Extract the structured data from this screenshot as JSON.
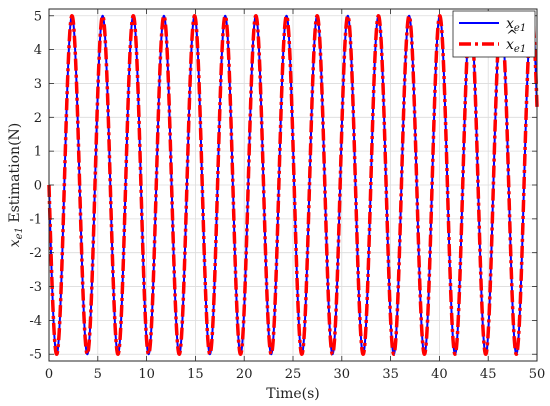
{
  "chart_data": {
    "type": "line",
    "xlabel": "Time(s)",
    "ylabel": "x_e1 Estimation(N)",
    "ylabel_parts": {
      "var": "x",
      "sub": "e1",
      "rest": " Estimation(N)"
    },
    "xlim": [
      0,
      50
    ],
    "ylim": [
      -5.2,
      5.2
    ],
    "xticks": [
      "0",
      "5",
      "10",
      "15",
      "20",
      "25",
      "30",
      "35",
      "40",
      "45",
      "50"
    ],
    "yticks": [
      "5",
      "4",
      "3",
      "2",
      "1",
      "0",
      "-1",
      "-2",
      "-3",
      "-4",
      "-5"
    ],
    "grid": true,
    "legend_position": "top-right",
    "series": [
      {
        "name": "x_e1",
        "legend_var": "x",
        "legend_sub": "e1",
        "legend_hat": false,
        "color": "#0000ff",
        "style": "solid",
        "function": "-5*sin(2*pi*t/3.14)",
        "amplitude": 5,
        "period": 3.14,
        "t_start": 0,
        "t_end": 50
      },
      {
        "name": "x̂_e1",
        "legend_var": "x",
        "legend_sub": "e1",
        "legend_hat": true,
        "color": "#ff0000",
        "style": "dash-dot",
        "function": "-5*sin(2*pi*t/3.14)",
        "amplitude": 5,
        "period": 3.14,
        "t_start": 0,
        "t_end": 50
      }
    ]
  }
}
